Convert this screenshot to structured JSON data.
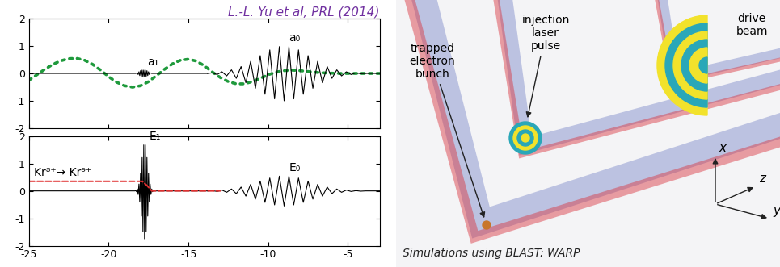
{
  "chart_data": [
    {
      "type": "line",
      "title": "L.-L. Yu et al, PRL (2014)",
      "xlim": [
        -25,
        -3
      ],
      "xticks": [
        -25,
        -20,
        -15,
        -10,
        -5
      ],
      "ylim": [
        -2,
        2
      ],
      "yticks": [
        -2,
        -1,
        0,
        1,
        2
      ],
      "tick_labels": "y",
      "series": [
        {
          "color": "#1f9a3c",
          "line_style": "dotted",
          "x": [
            -25,
            -24.5,
            -24,
            -23.5,
            -23,
            -22.5,
            -22,
            -21.5,
            -21,
            -20.5,
            -20,
            -19.5,
            -19,
            -18.5,
            -18,
            -17.5,
            -17,
            -16.5,
            -16,
            -15.5,
            -15,
            -14.5,
            -14,
            -13.5,
            -13,
            -12.5,
            -12,
            -11.5,
            -11,
            -10.5,
            -10,
            -9.5,
            -9,
            -8.5,
            -8,
            -7.5,
            -7,
            -6.5,
            -6,
            -5.5,
            -5,
            -4.5,
            -4,
            -3.5,
            -3
          ],
          "values": [
            -0.25,
            -0.05,
            0.15,
            0.33,
            0.46,
            0.54,
            0.55,
            0.48,
            0.33,
            0.12,
            -0.12,
            -0.32,
            -0.45,
            -0.5,
            -0.45,
            -0.3,
            -0.08,
            0.15,
            0.35,
            0.48,
            0.52,
            0.45,
            0.28,
            0.05,
            -0.15,
            -0.3,
            -0.38,
            -0.38,
            -0.3,
            -0.18,
            -0.05,
            0.05,
            0.1,
            0.12,
            0.1,
            0.07,
            0.04,
            0.02,
            0.01,
            0,
            0,
            0,
            0,
            0,
            0
          ]
        },
        {
          "name": "a₁",
          "color": "#000000",
          "line_style": "solid",
          "x": [
            -25,
            -18.3,
            -18.2,
            -18.15,
            -18.1,
            -18.05,
            -18.0,
            -17.95,
            -17.9,
            -17.85,
            -17.8,
            -17.75,
            -17.7,
            -17.65,
            -17.6,
            -17.55,
            -17.5,
            -17.45,
            -17.4,
            -17.3,
            -13.8
          ],
          "values": [
            0,
            0,
            0.02,
            -0.04,
            0.06,
            -0.08,
            0.1,
            -0.11,
            0.12,
            -0.12,
            0.12,
            -0.12,
            0.12,
            -0.11,
            0.1,
            -0.08,
            0.06,
            -0.04,
            0.02,
            0,
            0
          ]
        },
        {
          "name": "a₀",
          "color": "#000000",
          "line_style": "solid",
          "x": [
            -13.8,
            -13.5,
            -13.2,
            -12.9,
            -12.6,
            -12.3,
            -12.0,
            -11.7,
            -11.4,
            -11.1,
            -10.8,
            -10.5,
            -10.2,
            -9.9,
            -9.6,
            -9.3,
            -9.0,
            -8.7,
            -8.4,
            -8.1,
            -7.8,
            -7.5,
            -7.2,
            -6.9,
            -6.6,
            -6.3,
            -6.0,
            -5.7,
            -5.4,
            -5.1,
            -4.8,
            -4.5,
            -4.2,
            -3.9,
            -3
          ],
          "values": [
            0,
            0.02,
            -0.04,
            0.06,
            -0.09,
            0.13,
            -0.18,
            0.25,
            -0.34,
            0.44,
            -0.54,
            0.65,
            -0.76,
            0.86,
            -0.93,
            0.98,
            -1.0,
            0.98,
            -0.93,
            0.86,
            -0.76,
            0.65,
            -0.54,
            0.44,
            -0.34,
            0.25,
            -0.18,
            0.13,
            -0.09,
            0.06,
            -0.04,
            0.02,
            -0.01,
            0,
            0
          ]
        }
      ]
    },
    {
      "type": "line",
      "xlim": [
        -25,
        -3
      ],
      "xticks": [
        -25,
        -20,
        -15,
        -10,
        -5
      ],
      "ylim": [
        -2,
        2
      ],
      "yticks": [
        -2,
        -1,
        0,
        1,
        2
      ],
      "series": [
        {
          "name": "E₁",
          "color": "#000000",
          "line_style": "solid",
          "x": [
            -25,
            -18.35,
            -18.3,
            -18.25,
            -18.2,
            -18.15,
            -18.1,
            -18.05,
            -18.0,
            -17.95,
            -17.9,
            -17.85,
            -17.8,
            -17.75,
            -17.7,
            -17.65,
            -17.6,
            -17.55,
            -17.5,
            -17.45,
            -17.4,
            -17.35,
            -17.3,
            -17.25,
            -17.2,
            -17.15,
            -13.8
          ],
          "values": [
            0,
            0,
            0.01,
            -0.03,
            0.07,
            -0.13,
            0.25,
            -0.41,
            0.64,
            -0.92,
            1.22,
            -1.49,
            1.68,
            -1.75,
            1.68,
            -1.49,
            1.22,
            -0.92,
            0.64,
            -0.41,
            0.25,
            -0.13,
            0.07,
            -0.03,
            0.01,
            0,
            0
          ]
        },
        {
          "name": "E₀",
          "color": "#000000",
          "line_style": "solid",
          "x": [
            -13.8,
            -13.5,
            -13.2,
            -12.9,
            -12.6,
            -12.3,
            -12.0,
            -11.7,
            -11.4,
            -11.1,
            -10.8,
            -10.5,
            -10.2,
            -9.9,
            -9.6,
            -9.3,
            -9.0,
            -8.7,
            -8.4,
            -8.1,
            -7.8,
            -7.5,
            -7.2,
            -6.9,
            -6.6,
            -6.3,
            -6.0,
            -5.7,
            -5.4,
            -5.1,
            -4.8,
            -4.5,
            -4.2,
            -3.9,
            -3
          ],
          "values": [
            0,
            0.01,
            -0.02,
            0.03,
            -0.05,
            0.07,
            -0.1,
            0.14,
            -0.19,
            0.24,
            -0.3,
            0.36,
            -0.42,
            0.47,
            -0.51,
            0.54,
            -0.55,
            0.54,
            -0.51,
            0.47,
            -0.42,
            0.36,
            -0.3,
            0.24,
            -0.19,
            0.14,
            -0.1,
            0.07,
            -0.05,
            0.03,
            -0.02,
            0.01,
            -0.01,
            0,
            0
          ]
        },
        {
          "name": "Kr⁸⁺→ Kr⁹⁺",
          "color": "#e03030",
          "line_style": "dashed",
          "x": [
            -25,
            -17.9,
            -17.6,
            -17.3,
            -13
          ],
          "values": [
            0.35,
            0.35,
            0.2,
            0,
            0
          ]
        }
      ]
    }
  ],
  "illustration": {
    "trapped_bunch": "trapped\nelectron\nbunch",
    "injection": "injection\nlaser\npulse",
    "drive": "drive\nbeam",
    "axes": [
      "x",
      "y",
      "z"
    ],
    "caption": "Simulations using BLAST: WARP"
  }
}
